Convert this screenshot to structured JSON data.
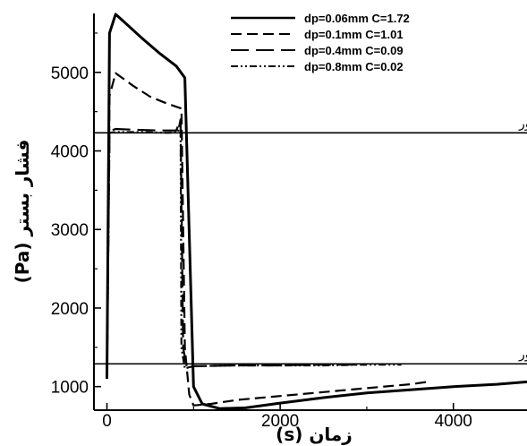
{
  "chart_data": {
    "type": "line",
    "title": "",
    "xlabel": "زمان (s)",
    "ylabel": "فشار بستر (Pa)",
    "xlim": [
      -150,
      4850
    ],
    "ylim": [
      700,
      5750
    ],
    "x_ticks": [
      0,
      2000,
      4000
    ],
    "y_ticks": [
      1000,
      2000,
      3000,
      4000,
      5000
    ],
    "grid": false,
    "legend_position": "top-right",
    "series": [
      {
        "name": "dp=0.06mm  C=1.72",
        "style": "solid",
        "x": [
          0,
          30,
          100,
          200,
          400,
          600,
          800,
          900,
          1000,
          1100,
          1300,
          1600,
          2000,
          2500,
          3000,
          3500,
          4000,
          4500,
          4850
        ],
        "y": [
          1100,
          5500,
          5740,
          5640,
          5440,
          5250,
          5080,
          4930,
          1000,
          780,
          720,
          730,
          790,
          860,
          920,
          960,
          1000,
          1030,
          1060
        ]
      },
      {
        "name": "dp=0.1mm  C=1.01",
        "style": "dashed",
        "x": [
          0,
          30,
          100,
          300,
          500,
          700,
          860,
          900,
          950,
          1000,
          1200,
          1500,
          2000,
          2500,
          3000,
          3500,
          3700
        ],
        "y": [
          1100,
          4700,
          4990,
          4830,
          4690,
          4600,
          4540,
          1500,
          900,
          760,
          780,
          830,
          880,
          930,
          980,
          1030,
          1060
        ]
      },
      {
        "name": "dp=0.4mm  C=0.09",
        "style": "long-dash",
        "x": [
          0,
          30,
          100,
          300,
          600,
          800,
          850,
          880,
          920,
          1000,
          1500,
          2000,
          2500,
          3000
        ],
        "y": [
          1100,
          4250,
          4280,
          4270,
          4260,
          4260,
          4400,
          1500,
          1240,
          1260,
          1270,
          1270,
          1280,
          1280
        ]
      },
      {
        "name": "dp=0.8mm  C=0.02",
        "style": "dash-dot",
        "x": [
          0,
          30,
          100,
          400,
          700,
          820,
          850,
          860,
          900,
          1000,
          1500,
          2000,
          2500,
          3000,
          3400
        ],
        "y": [
          1100,
          4230,
          4240,
          4240,
          4230,
          4240,
          4400,
          1500,
          1230,
          1260,
          1270,
          1270,
          1270,
          1280,
          1280
        ]
      }
    ],
    "reference_lines": [
      {
        "label": "فشار کندانسور",
        "y": 4230
      },
      {
        "label": "فشار اواپراتور",
        "y": 1290
      }
    ]
  }
}
